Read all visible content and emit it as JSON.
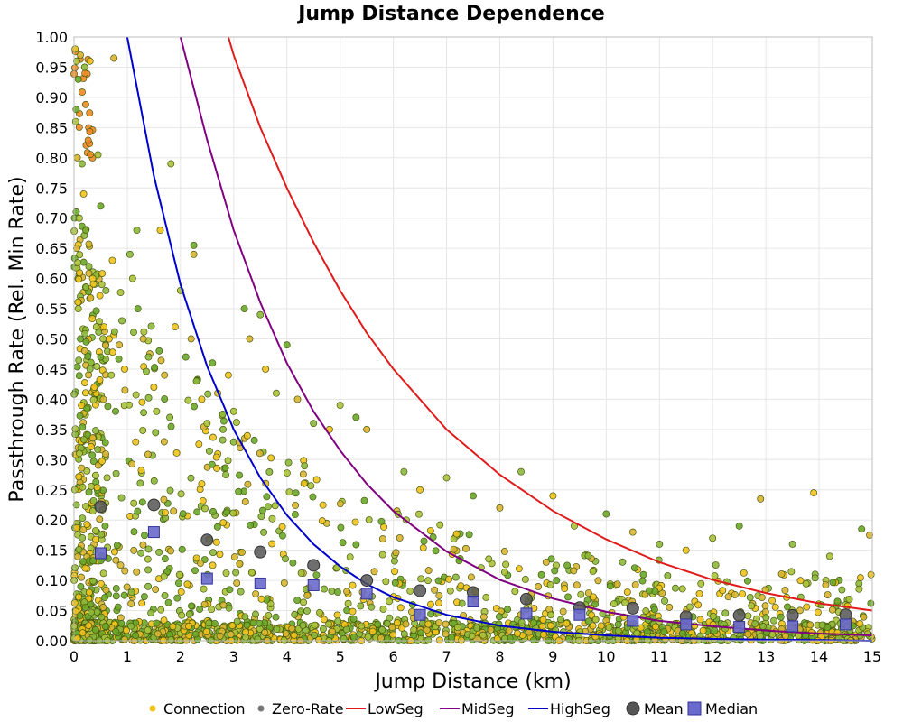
{
  "chart_data": {
    "type": "scatter",
    "title": "Jump Distance Dependence",
    "xlabel": "Jump Distance (km)",
    "ylabel": "Passthrough Rate (Rel. Min Rate)",
    "xlim": [
      0,
      15
    ],
    "ylim": [
      0,
      1
    ],
    "grid": true,
    "legend_position": "bottom",
    "x_ticks": [
      "0",
      "1",
      "2",
      "3",
      "4",
      "5",
      "6",
      "7",
      "8",
      "9",
      "10",
      "11",
      "12",
      "13",
      "14",
      "15"
    ],
    "y_ticks": [
      "0.00",
      "0.05",
      "0.10",
      "0.15",
      "0.20",
      "0.25",
      "0.30",
      "0.35",
      "0.40",
      "0.45",
      "0.50",
      "0.55",
      "0.60",
      "0.65",
      "0.70",
      "0.75",
      "0.80",
      "0.85",
      "0.90",
      "0.95",
      "1.00"
    ],
    "legend": [
      {
        "name": "Connection",
        "kind": "dot",
        "color": "#f2c21b"
      },
      {
        "name": "Zero-Rate",
        "kind": "dot",
        "color": "#777777"
      },
      {
        "name": "LowSeg",
        "kind": "line",
        "color": "#e01b1b"
      },
      {
        "name": "MidSeg",
        "kind": "line",
        "color": "#800080"
      },
      {
        "name": "HighSeg",
        "kind": "line",
        "color": "#0000cc"
      },
      {
        "name": "Mean",
        "kind": "circle",
        "color": "#555555"
      },
      {
        "name": "Median",
        "kind": "square",
        "color": "#6a6acc"
      }
    ],
    "connection_points": [
      [
        0.02,
        0.98
      ],
      [
        0.05,
        0.96
      ],
      [
        0.08,
        0.93
      ],
      [
        0.12,
        0.97
      ],
      [
        0.2,
        0.95
      ],
      [
        0.3,
        0.96
      ],
      [
        0.03,
        0.86
      ],
      [
        0.04,
        0.88
      ],
      [
        0.06,
        0.8
      ],
      [
        0.15,
        0.79
      ],
      [
        0.18,
        0.74
      ],
      [
        0.1,
        0.7
      ],
      [
        0.22,
        0.68
      ],
      [
        0.05,
        0.65
      ],
      [
        0.28,
        0.62
      ],
      [
        0.35,
        0.6
      ],
      [
        0.45,
        0.805
      ],
      [
        0.5,
        0.72
      ],
      [
        0.75,
        0.965
      ],
      [
        1.18,
        0.68
      ],
      [
        1.62,
        0.68
      ],
      [
        1.82,
        0.79
      ],
      [
        2.25,
        0.655
      ],
      [
        2.25,
        0.64
      ],
      [
        1.05,
        0.64
      ],
      [
        0.72,
        0.63
      ],
      [
        0.08,
        0.55
      ],
      [
        0.12,
        0.5
      ],
      [
        0.2,
        0.48
      ],
      [
        0.3,
        0.45
      ],
      [
        0.38,
        0.42
      ],
      [
        0.42,
        0.52
      ],
      [
        0.5,
        0.47
      ],
      [
        0.55,
        0.4
      ],
      [
        0.6,
        0.58
      ],
      [
        0.66,
        0.5
      ],
      [
        0.7,
        0.44
      ],
      [
        0.78,
        0.38
      ],
      [
        0.85,
        0.49
      ],
      [
        0.9,
        0.53
      ],
      [
        0.95,
        0.45
      ],
      [
        1.1,
        0.6
      ],
      [
        1.2,
        0.55
      ],
      [
        1.3,
        0.5
      ],
      [
        1.4,
        0.47
      ],
      [
        1.5,
        0.42
      ],
      [
        1.55,
        0.38
      ],
      [
        1.6,
        0.48
      ],
      [
        1.7,
        0.44
      ],
      [
        1.8,
        0.37
      ],
      [
        1.9,
        0.52
      ],
      [
        2.0,
        0.58
      ],
      [
        2.1,
        0.47
      ],
      [
        2.2,
        0.5
      ],
      [
        2.3,
        0.43
      ],
      [
        2.4,
        0.4
      ],
      [
        2.5,
        0.36
      ],
      [
        2.6,
        0.46
      ],
      [
        2.7,
        0.41
      ],
      [
        2.8,
        0.35
      ],
      [
        2.9,
        0.44
      ],
      [
        3.0,
        0.38
      ],
      [
        3.2,
        0.55
      ],
      [
        3.3,
        0.5
      ],
      [
        3.5,
        0.54
      ],
      [
        3.6,
        0.45
      ],
      [
        3.8,
        0.41
      ],
      [
        4.0,
        0.49
      ],
      [
        4.2,
        0.4
      ],
      [
        4.5,
        0.36
      ],
      [
        4.8,
        0.35
      ],
      [
        5.0,
        0.39
      ],
      [
        5.3,
        0.37
      ],
      [
        5.5,
        0.35
      ],
      [
        6.2,
        0.28
      ],
      [
        6.5,
        0.25
      ],
      [
        7.0,
        0.27
      ],
      [
        7.5,
        0.24
      ],
      [
        8.0,
        0.22
      ],
      [
        8.4,
        0.28
      ],
      [
        9.0,
        0.24
      ],
      [
        9.4,
        0.19
      ],
      [
        10.0,
        0.21
      ],
      [
        10.5,
        0.18
      ],
      [
        11.0,
        0.16
      ],
      [
        11.5,
        0.15
      ],
      [
        12.0,
        0.17
      ],
      [
        12.5,
        0.19
      ],
      [
        12.9,
        0.235
      ],
      [
        13.5,
        0.16
      ],
      [
        13.9,
        0.245
      ],
      [
        14.2,
        0.14
      ],
      [
        14.8,
        0.185
      ],
      [
        14.95,
        0.175
      ]
    ],
    "mean_points": [
      [
        0.5,
        0.222
      ],
      [
        1.5,
        0.225
      ],
      [
        2.5,
        0.167
      ],
      [
        3.5,
        0.147
      ],
      [
        4.5,
        0.125
      ],
      [
        5.5,
        0.1
      ],
      [
        6.5,
        0.083
      ],
      [
        7.5,
        0.08
      ],
      [
        8.5,
        0.069
      ],
      [
        9.5,
        0.055
      ],
      [
        10.5,
        0.054
      ],
      [
        11.5,
        0.04
      ],
      [
        12.5,
        0.042
      ],
      [
        13.5,
        0.042
      ],
      [
        14.5,
        0.043
      ]
    ],
    "median_points": [
      [
        0.5,
        0.145
      ],
      [
        1.5,
        0.18
      ],
      [
        2.5,
        0.103
      ],
      [
        3.5,
        0.095
      ],
      [
        4.5,
        0.092
      ],
      [
        5.5,
        0.078
      ],
      [
        6.5,
        0.043
      ],
      [
        7.5,
        0.065
      ],
      [
        8.5,
        0.045
      ],
      [
        9.5,
        0.043
      ],
      [
        10.5,
        0.033
      ],
      [
        11.5,
        0.027
      ],
      [
        12.5,
        0.023
      ],
      [
        13.5,
        0.024
      ],
      [
        14.5,
        0.027
      ]
    ],
    "curves": [
      {
        "name": "LowSeg",
        "x": [
          2.9,
          3.0,
          3.5,
          4.0,
          4.5,
          5.0,
          5.5,
          6.0,
          7.0,
          8.0,
          9.0,
          10.0,
          11.0,
          12.0,
          13.0,
          14.0,
          15.0
        ],
        "y": [
          1.0,
          0.97,
          0.85,
          0.75,
          0.66,
          0.58,
          0.51,
          0.45,
          0.35,
          0.275,
          0.215,
          0.168,
          0.13,
          0.101,
          0.079,
          0.062,
          0.05
        ]
      },
      {
        "name": "MidSeg",
        "x": [
          2.0,
          2.5,
          3.0,
          3.5,
          4.0,
          4.5,
          5.0,
          5.5,
          6.0,
          7.0,
          8.0,
          9.0,
          10.0,
          11.0,
          12.0,
          13.0,
          14.0,
          15.0
        ],
        "y": [
          1.0,
          0.83,
          0.68,
          0.56,
          0.46,
          0.38,
          0.315,
          0.26,
          0.215,
          0.148,
          0.101,
          0.07,
          0.048,
          0.033,
          0.024,
          0.017,
          0.012,
          0.009
        ]
      },
      {
        "name": "HighSeg",
        "x": [
          1.0,
          1.5,
          2.0,
          2.5,
          3.0,
          3.5,
          4.0,
          4.5,
          5.0,
          5.5,
          6.0,
          7.0,
          8.0,
          9.0,
          10.0,
          11.0,
          12.0,
          13.0,
          14.0,
          15.0
        ],
        "y": [
          1.0,
          0.77,
          0.59,
          0.455,
          0.35,
          0.27,
          0.208,
          0.16,
          0.123,
          0.094,
          0.072,
          0.043,
          0.025,
          0.015,
          0.009,
          0.005,
          0.003,
          0.002,
          0.001,
          0.0
        ]
      }
    ]
  }
}
